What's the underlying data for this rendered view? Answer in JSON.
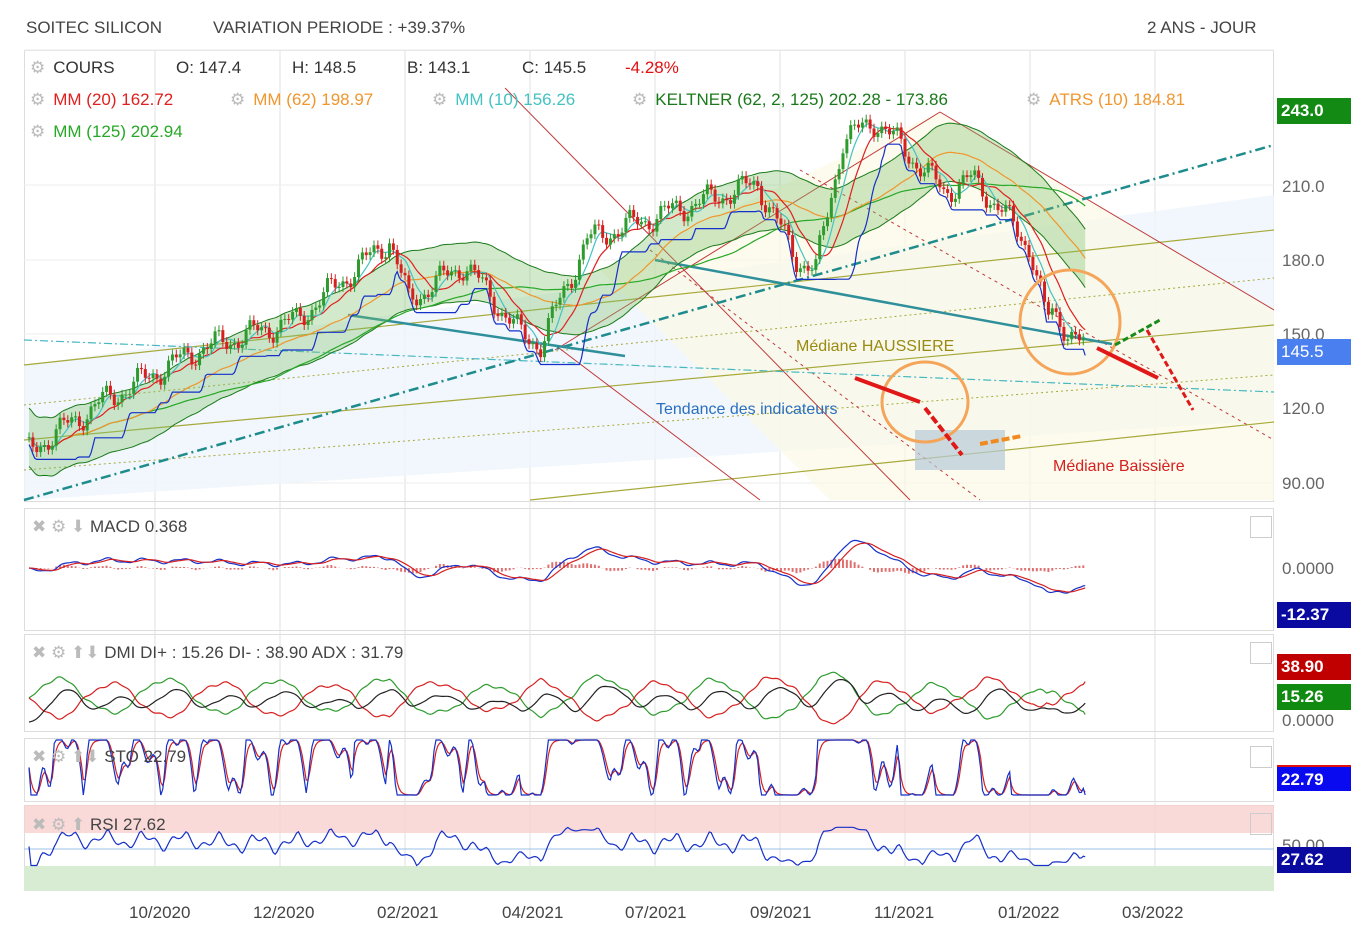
{
  "header": {
    "title": "SOITEC SILICON",
    "variation": "VARIATION PERIODE : +39.37%",
    "period": "2 ANS - JOUR"
  },
  "legend": {
    "cours": "COURS",
    "open": "O: 147.4",
    "high": "H: 148.5",
    "low": "B: 143.1",
    "close": "C: 145.5",
    "change": "-4.28%",
    "mm20_label": "MM (20)",
    "mm20_value": "162.72",
    "mm62_label": "MM (62)",
    "mm62_value": "198.97",
    "mm10_label": "MM (10)",
    "mm10_value": "156.26",
    "keltner_label": "KELTNER (62, 2, 125)",
    "keltner_value": "202.28 - 173.86",
    "atrs_label": "ATRS (10)",
    "atrs_value": "184.81",
    "mm125_label": "MM (125)",
    "mm125_value": "202.94"
  },
  "colors": {
    "up": "#2e9b2e",
    "down": "#d62020",
    "mm20": "#e0201f",
    "mm62": "#f0962e",
    "mm10": "#45c2c2",
    "keltner": "#1a7a1a",
    "mm125": "#27a827",
    "blue": "#1530c8"
  },
  "annotations": {
    "median_up": "Médiane HAUSSIERE",
    "indicators_trend": "Tendance des indicateurs",
    "median_down": "Médiane Baissière"
  },
  "price_axis": {
    "ticks": [
      "243.0",
      "210.0",
      "180.0",
      "150.0",
      "120.0",
      "90.00"
    ],
    "last": "145.5"
  },
  "panels": {
    "macd": {
      "label": "MACD",
      "value": "0.368",
      "zero": "0.0000",
      "tag": "-12.37"
    },
    "dmi": {
      "label": "DMI",
      "value": "DI+ : 15.26 DI- : 38.90 ADX : 31.79",
      "tag_minus": "38.90",
      "tag_plus": "15.26",
      "zero": "0.0000"
    },
    "sto": {
      "label": "STO",
      "value": "22.79",
      "tag": "22.79"
    },
    "rsi": {
      "label": "RSI",
      "value": "27.62",
      "level": "50.00",
      "tag": "27.62"
    }
  },
  "x_axis": [
    "10/2020",
    "12/2020",
    "02/2021",
    "04/2021",
    "07/2021",
    "09/2021",
    "11/2021",
    "01/2022",
    "03/2022"
  ],
  "chart_data": {
    "type": "line",
    "title": "SOITEC SILICON",
    "ylabel": "",
    "ylim": [
      85,
      255
    ],
    "x": [
      "2020-07-28",
      "2020-09-05",
      "2020-10-24",
      "2020-12-13",
      "2021-01-30",
      "2021-02-09",
      "2021-03-10",
      "2021-04-08",
      "2021-04-18",
      "2021-05-12",
      "2021-06-25",
      "2021-08-08",
      "2021-08-28",
      "2021-09-07",
      "2021-09-21",
      "2021-10-08",
      "2021-10-18",
      "2021-11-12",
      "2021-11-27",
      "2021-12-12",
      "2021-12-27",
      "2022-01-04",
      "2022-01-07",
      "2022-01-24"
    ],
    "close": [
      103,
      124,
      145,
      157,
      190,
      165,
      180,
      151,
      147,
      190,
      202,
      213,
      182,
      178,
      231,
      239,
      231,
      210,
      215,
      202,
      186,
      157,
      160,
      145.5
    ]
  }
}
